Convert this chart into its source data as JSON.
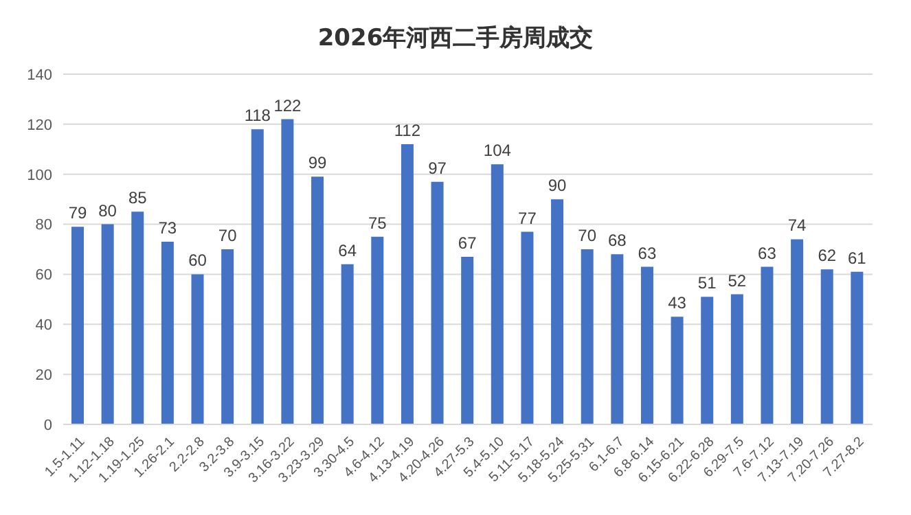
{
  "chart_data": {
    "type": "bar",
    "title": "2026年河西二手房周成交",
    "categories": [
      "1.5-1.11",
      "1.12-1.18",
      "1.19-1.25",
      "1.26-2.1",
      "2.2-2.8",
      "3.2-3.8",
      "3.9-3.15",
      "3.16-3.22",
      "3.23-3.29",
      "3.30-4.5",
      "4.6-4.12",
      "4.13-4.19",
      "4.20-4.26",
      "4.27-5.3",
      "5.4-5.10",
      "5.11-5.17",
      "5.18-5.24",
      "5.25-5.31",
      "6.1-6.7",
      "6.8-6.14",
      "6.15-6.21",
      "6.22-6.28",
      "6.29-7.5",
      "7.6-7.12",
      "7.13-7.19",
      "7.20-7.26",
      "7.27-8.2"
    ],
    "values": [
      79,
      80,
      85,
      73,
      60,
      70,
      118,
      122,
      99,
      64,
      75,
      112,
      97,
      67,
      104,
      77,
      90,
      70,
      68,
      63,
      43,
      51,
      52,
      63,
      74,
      62,
      61
    ],
    "color": "#4472c4",
    "ylim": [
      0,
      140
    ],
    "yticks": [
      0,
      20,
      40,
      60,
      80,
      100,
      120,
      140
    ],
    "grid": "y",
    "data_labels": true
  }
}
